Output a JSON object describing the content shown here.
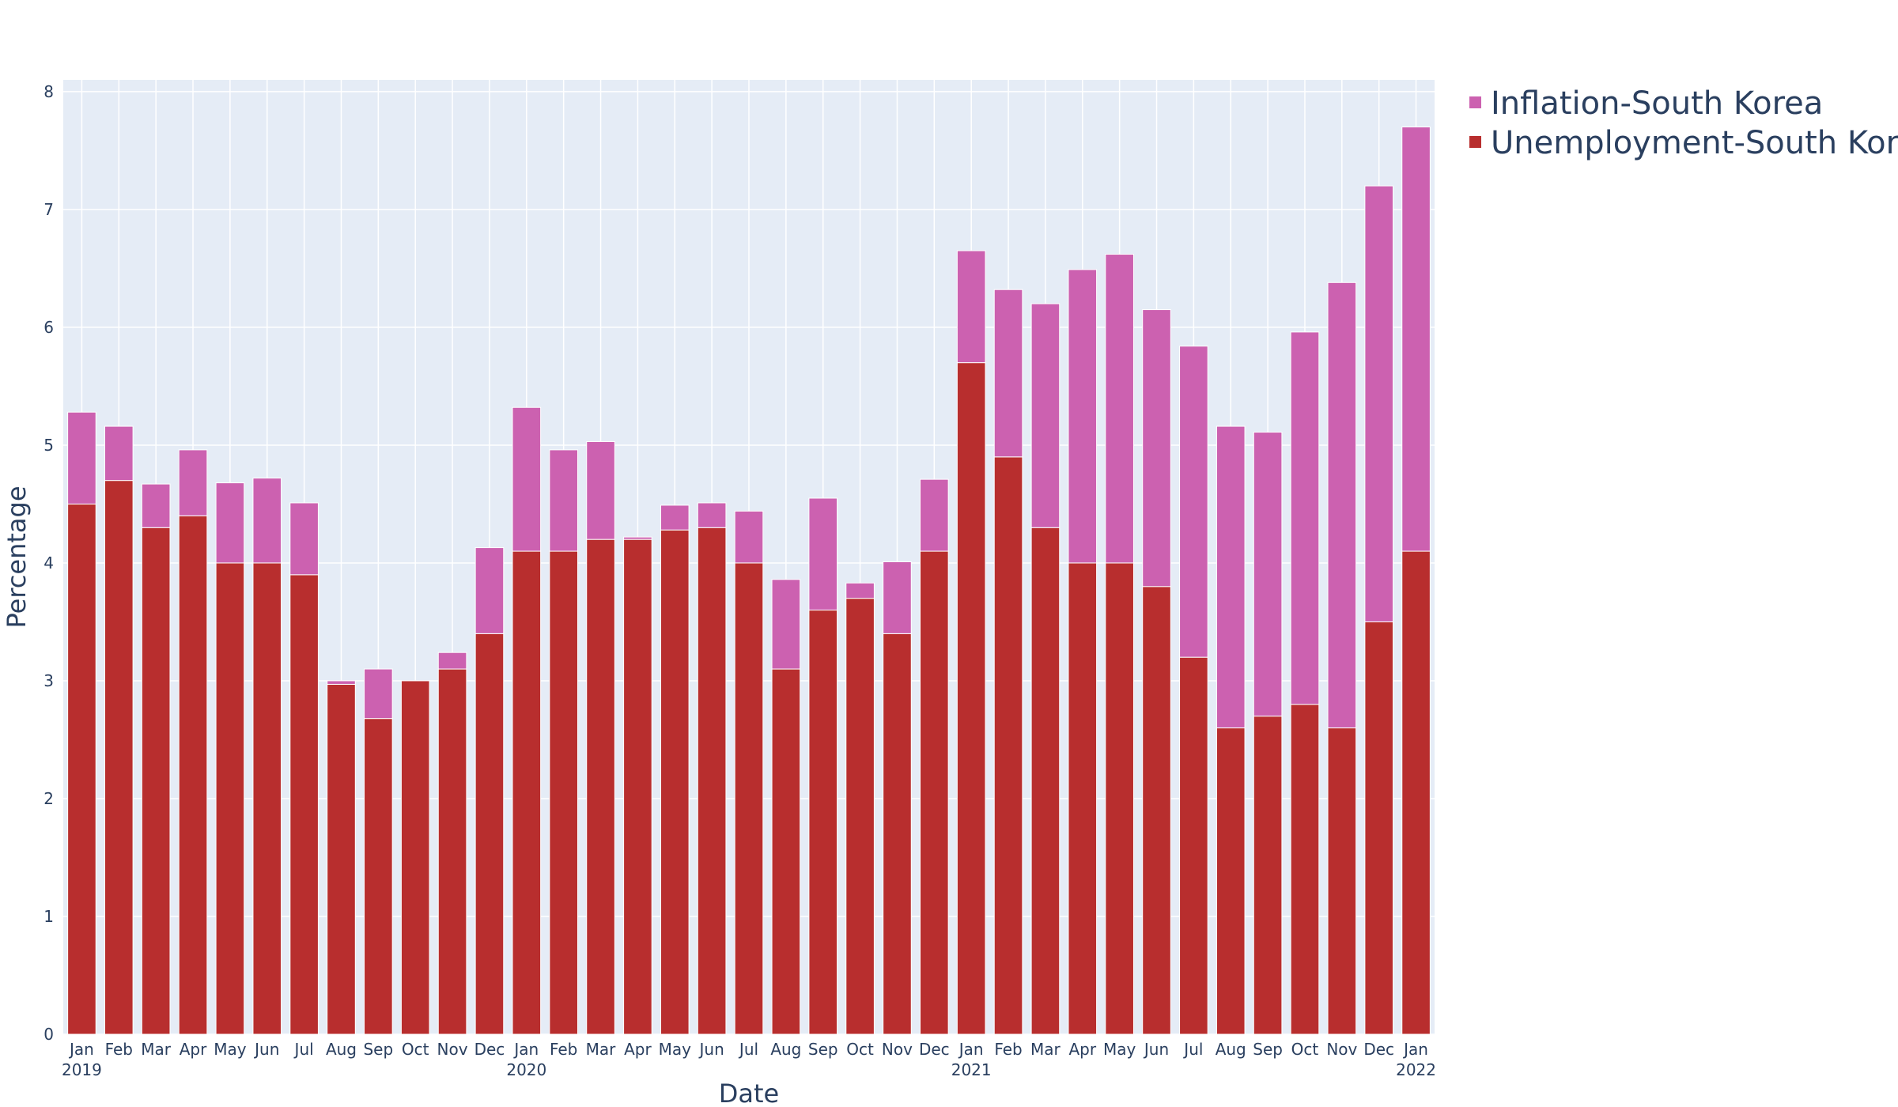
{
  "chart_data": {
    "type": "bar",
    "barmode": "stack",
    "title": "",
    "xlabel": "Date",
    "ylabel": "Percentage",
    "ylim": [
      0,
      8.1
    ],
    "yticks": [
      0,
      1,
      2,
      3,
      4,
      5,
      6,
      7,
      8
    ],
    "categories": [
      "Jan 2019",
      "Feb 2019",
      "Mar 2019",
      "Apr 2019",
      "May 2019",
      "Jun 2019",
      "Jul 2019",
      "Aug 2019",
      "Sep 2019",
      "Oct 2019",
      "Nov 2019",
      "Dec 2019",
      "Jan 2020",
      "Feb 2020",
      "Mar 2020",
      "Apr 2020",
      "May 2020",
      "Jun 2020",
      "Jul 2020",
      "Aug 2020",
      "Sep 2020",
      "Oct 2020",
      "Nov 2020",
      "Dec 2020",
      "Jan 2021",
      "Feb 2021",
      "Mar 2021",
      "Apr 2021",
      "May 2021",
      "Jun 2021",
      "Jul 2021",
      "Aug 2021",
      "Sep 2021",
      "Oct 2021",
      "Nov 2021",
      "Dec 2021",
      "Jan 2022"
    ],
    "tick_labels": [
      "Jan",
      "Feb",
      "Mar",
      "Apr",
      "May",
      "Jun",
      "Jul",
      "Aug",
      "Sep",
      "Oct",
      "Nov",
      "Dec",
      "Jan",
      "Feb",
      "Mar",
      "Apr",
      "May",
      "Jun",
      "Jul",
      "Aug",
      "Sep",
      "Oct",
      "Nov",
      "Dec",
      "Jan",
      "Feb",
      "Mar",
      "Apr",
      "May",
      "Jun",
      "Jul",
      "Aug",
      "Sep",
      "Oct",
      "Nov",
      "Dec",
      "Jan"
    ],
    "year_labels": [
      {
        "index": 0,
        "label": "2019"
      },
      {
        "index": 12,
        "label": "2020"
      },
      {
        "index": 24,
        "label": "2021"
      },
      {
        "index": 36,
        "label": "2022"
      }
    ],
    "series": [
      {
        "name": "Unemployment-South Korea",
        "color": "#b82e2e",
        "values": [
          4.5,
          4.7,
          4.3,
          4.4,
          4.0,
          4.0,
          3.9,
          2.97,
          2.68,
          3.0,
          3.1,
          3.4,
          4.1,
          4.1,
          4.2,
          4.2,
          4.28,
          4.3,
          4.0,
          3.1,
          3.6,
          3.7,
          3.4,
          4.1,
          5.7,
          4.9,
          4.3,
          4.0,
          4.0,
          3.8,
          3.2,
          2.6,
          2.7,
          2.8,
          2.6,
          3.5,
          4.1
        ]
      },
      {
        "name": "Inflation-South Korea",
        "color": "#cc61b0",
        "values": [
          0.78,
          0.46,
          0.37,
          0.56,
          0.68,
          0.72,
          0.61,
          0.03,
          0.42,
          0.0,
          0.14,
          0.73,
          1.22,
          0.86,
          0.83,
          0.02,
          0.21,
          0.21,
          0.44,
          0.76,
          0.95,
          0.13,
          0.61,
          0.61,
          0.95,
          1.42,
          1.9,
          2.49,
          2.62,
          2.35,
          2.64,
          2.56,
          2.41,
          3.16,
          3.78,
          3.7,
          3.6
        ]
      }
    ],
    "legend": {
      "position": "top-right",
      "items": [
        "Inflation-South Korea",
        "Unemployment-South Korea"
      ]
    },
    "colors": {
      "plot_bg": "#e5ecf6",
      "grid": "#ffffff",
      "text": "#2a3f5f"
    }
  }
}
